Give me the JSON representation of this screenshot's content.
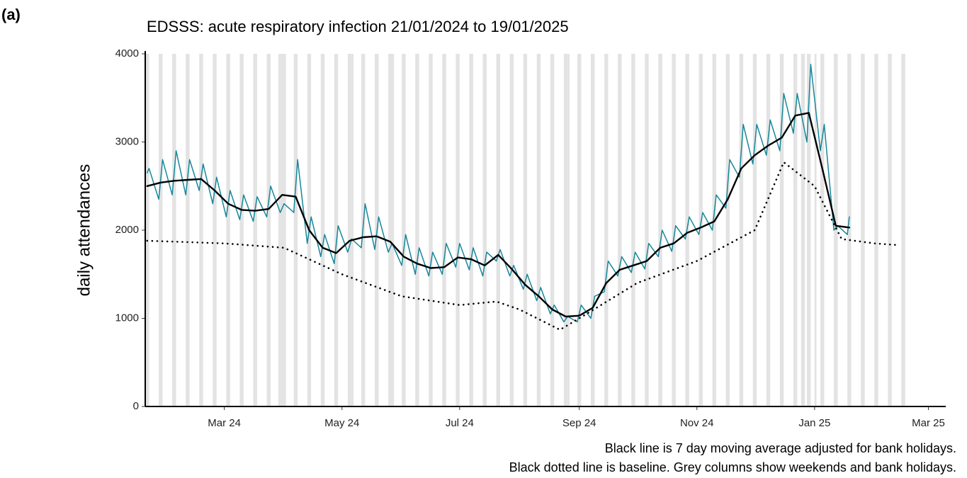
{
  "chart_data": {
    "type": "line",
    "panel_label": "(a)",
    "title": "EDSSS: acute respiratory infection 21/01/2024 to 19/01/2025",
    "y_label": "daily attendances",
    "caption": [
      "Black line is 7 day moving average adjusted for bank holidays.",
      "Black dotted line is baseline. Grey columns show weekends and bank holidays."
    ],
    "xlim": [
      "2024-01-20",
      "2025-03-10"
    ],
    "xticks": [
      {
        "value": "2024-03-01",
        "label": "Mar 24"
      },
      {
        "value": "2024-05-01",
        "label": "May 24"
      },
      {
        "value": "2024-07-01",
        "label": "Jul 24"
      },
      {
        "value": "2024-09-01",
        "label": "Sep 24"
      },
      {
        "value": "2024-11-01",
        "label": "Nov 24"
      },
      {
        "value": "2025-01-01",
        "label": "Jan 25"
      },
      {
        "value": "2025-03-01",
        "label": "Mar 25"
      }
    ],
    "ylim": [
      0,
      4000
    ],
    "yticks": [
      0,
      1000,
      2000,
      3000,
      4000
    ],
    "shade_weekends": true,
    "shade_range": [
      "2024-01-20",
      "2025-02-16"
    ],
    "bank_holidays": [
      "2024-03-29",
      "2024-04-01",
      "2024-05-06",
      "2024-05-27",
      "2024-08-26",
      "2024-12-25",
      "2024-12-26",
      "2025-01-01"
    ],
    "shade_color": "#e3e3e3",
    "series": [
      {
        "style": "solid",
        "color": "#17879a",
        "x": [
          "2024-01-21",
          "2024-01-22",
          "2024-01-27",
          "2024-01-29",
          "2024-02-03",
          "2024-02-05",
          "2024-02-10",
          "2024-02-12",
          "2024-02-17",
          "2024-02-19",
          "2024-02-24",
          "2024-02-26",
          "2024-03-02",
          "2024-03-04",
          "2024-03-09",
          "2024-03-11",
          "2024-03-16",
          "2024-03-18",
          "2024-03-23",
          "2024-03-25",
          "2024-03-30",
          "2024-04-01",
          "2024-04-06",
          "2024-04-08",
          "2024-04-13",
          "2024-04-15",
          "2024-04-20",
          "2024-04-22",
          "2024-04-27",
          "2024-04-29",
          "2024-05-04",
          "2024-05-06",
          "2024-05-11",
          "2024-05-13",
          "2024-05-18",
          "2024-05-20",
          "2024-05-25",
          "2024-05-27",
          "2024-06-01",
          "2024-06-03",
          "2024-06-08",
          "2024-06-10",
          "2024-06-15",
          "2024-06-17",
          "2024-06-22",
          "2024-06-24",
          "2024-06-29",
          "2024-07-01",
          "2024-07-06",
          "2024-07-08",
          "2024-07-13",
          "2024-07-15",
          "2024-07-20",
          "2024-07-22",
          "2024-07-27",
          "2024-07-29",
          "2024-08-03",
          "2024-08-05",
          "2024-08-10",
          "2024-08-12",
          "2024-08-17",
          "2024-08-19",
          "2024-08-24",
          "2024-08-26",
          "2024-08-31",
          "2024-09-02",
          "2024-09-07",
          "2024-09-09",
          "2024-09-14",
          "2024-09-16",
          "2024-09-21",
          "2024-09-23",
          "2024-09-28",
          "2024-09-30",
          "2024-10-05",
          "2024-10-07",
          "2024-10-12",
          "2024-10-14",
          "2024-10-19",
          "2024-10-21",
          "2024-10-26",
          "2024-10-28",
          "2024-11-02",
          "2024-11-04",
          "2024-11-09",
          "2024-11-11",
          "2024-11-16",
          "2024-11-18",
          "2024-11-23",
          "2024-11-25",
          "2024-11-30",
          "2024-12-02",
          "2024-12-07",
          "2024-12-09",
          "2024-12-14",
          "2024-12-16",
          "2024-12-21",
          "2024-12-23",
          "2024-12-28",
          "2024-12-30",
          "2025-01-04",
          "2025-01-06",
          "2025-01-11",
          "2025-01-13",
          "2025-01-18",
          "2025-01-19"
        ],
        "values": [
          2650,
          2700,
          2350,
          2800,
          2400,
          2900,
          2400,
          2800,
          2450,
          2750,
          2300,
          2600,
          2150,
          2450,
          2120,
          2400,
          2100,
          2380,
          2150,
          2500,
          2200,
          2300,
          2200,
          2800,
          1850,
          2150,
          1700,
          1950,
          1620,
          2050,
          1750,
          1900,
          1800,
          2300,
          1780,
          2150,
          1750,
          1850,
          1600,
          1950,
          1500,
          1800,
          1480,
          1750,
          1500,
          1850,
          1580,
          1850,
          1550,
          1800,
          1480,
          1750,
          1650,
          1780,
          1480,
          1600,
          1330,
          1500,
          1200,
          1350,
          1050,
          1150,
          960,
          1020,
          960,
          1150,
          1000,
          1250,
          1300,
          1650,
          1480,
          1700,
          1520,
          1750,
          1560,
          1850,
          1700,
          2000,
          1760,
          2050,
          1900,
          2150,
          1950,
          2200,
          2000,
          2400,
          2250,
          2800,
          2600,
          3200,
          2750,
          3200,
          2850,
          3250,
          2900,
          3550,
          3100,
          3550,
          3000,
          3880,
          2900,
          3200,
          2000,
          2050,
          1950,
          2150
        ]
      },
      {
        "style": "solid",
        "color": "#000000",
        "x": [
          "2024-01-21",
          "2024-01-28",
          "2024-02-04",
          "2024-02-11",
          "2024-02-18",
          "2024-02-25",
          "2024-03-03",
          "2024-03-10",
          "2024-03-17",
          "2024-03-24",
          "2024-03-31",
          "2024-04-07",
          "2024-04-14",
          "2024-04-21",
          "2024-04-28",
          "2024-05-05",
          "2024-05-12",
          "2024-05-19",
          "2024-05-26",
          "2024-06-02",
          "2024-06-09",
          "2024-06-16",
          "2024-06-23",
          "2024-06-30",
          "2024-07-07",
          "2024-07-14",
          "2024-07-21",
          "2024-07-28",
          "2024-08-04",
          "2024-08-11",
          "2024-08-18",
          "2024-08-25",
          "2024-09-01",
          "2024-09-08",
          "2024-09-15",
          "2024-09-22",
          "2024-09-29",
          "2024-10-06",
          "2024-10-13",
          "2024-10-20",
          "2024-10-27",
          "2024-11-03",
          "2024-11-10",
          "2024-11-17",
          "2024-11-24",
          "2024-12-01",
          "2024-12-08",
          "2024-12-15",
          "2024-12-22",
          "2024-12-29",
          "2025-01-05",
          "2025-01-12",
          "2025-01-19"
        ],
        "values": [
          2500,
          2540,
          2560,
          2570,
          2580,
          2450,
          2300,
          2230,
          2220,
          2240,
          2400,
          2380,
          2000,
          1800,
          1740,
          1880,
          1920,
          1930,
          1870,
          1700,
          1620,
          1570,
          1580,
          1690,
          1670,
          1600,
          1720,
          1560,
          1380,
          1250,
          1100,
          1020,
          1030,
          1120,
          1400,
          1550,
          1600,
          1650,
          1800,
          1850,
          1970,
          2030,
          2100,
          2350,
          2700,
          2850,
          2960,
          3050,
          3300,
          3330,
          2700,
          2050,
          2030
        ]
      },
      {
        "style": "dotted",
        "color": "#000000",
        "x": [
          "2024-01-21",
          "2024-03-01",
          "2024-04-01",
          "2024-05-01",
          "2024-06-01",
          "2024-07-01",
          "2024-07-20",
          "2024-08-01",
          "2024-08-22",
          "2024-09-01",
          "2024-10-01",
          "2024-11-01",
          "2024-12-01",
          "2024-12-16",
          "2025-01-01",
          "2025-01-15",
          "2025-02-01",
          "2025-02-14"
        ],
        "values": [
          1880,
          1850,
          1800,
          1500,
          1250,
          1150,
          1190,
          1100,
          870,
          1000,
          1400,
          1650,
          2000,
          2770,
          2500,
          1900,
          1850,
          1830
        ]
      }
    ]
  }
}
